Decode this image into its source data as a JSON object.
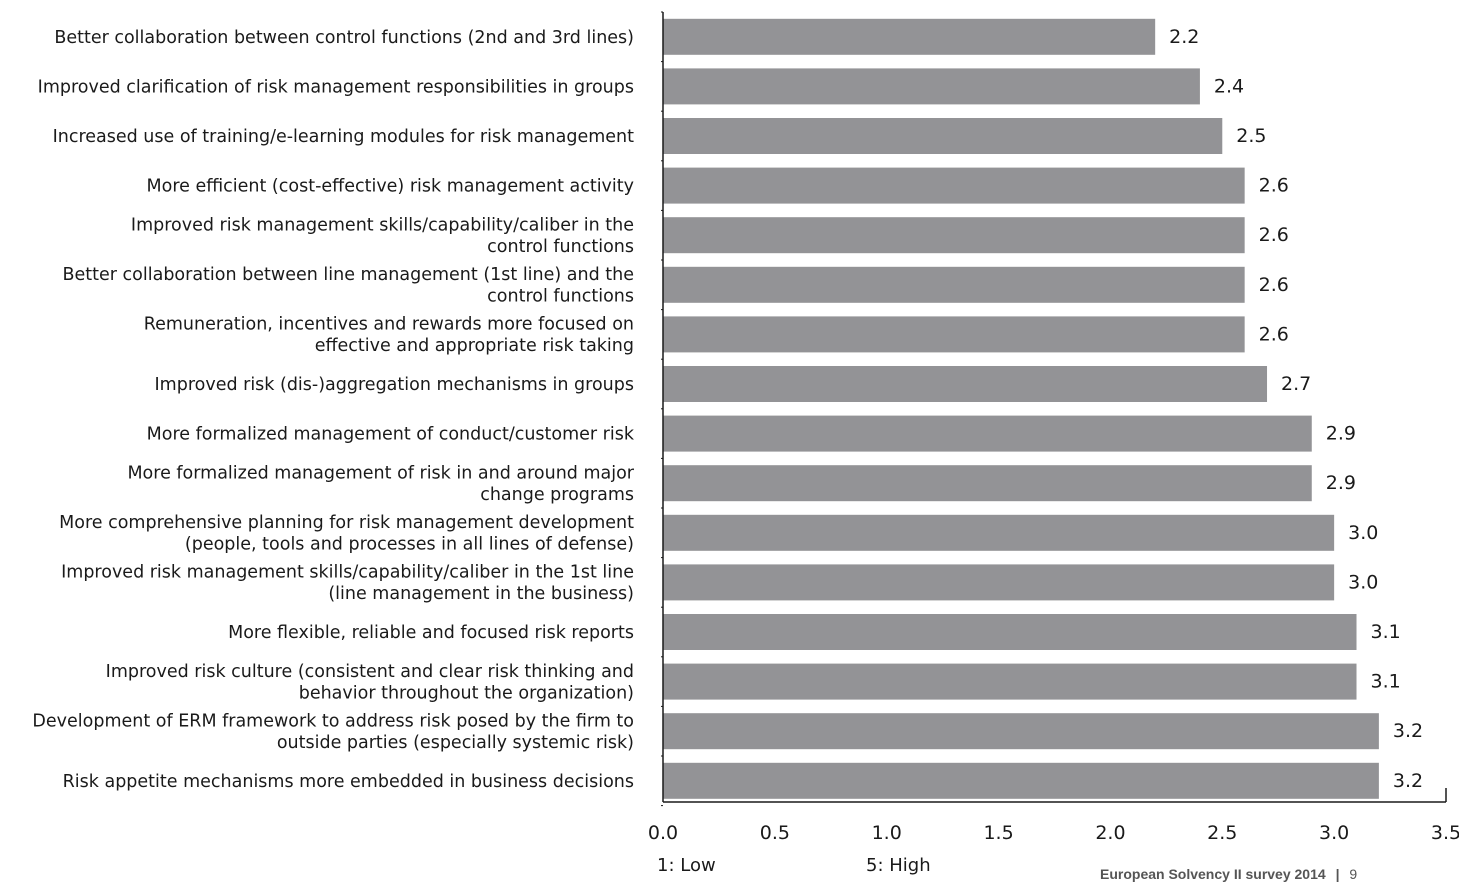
{
  "chart_data": {
    "type": "bar",
    "orientation": "horizontal",
    "categories": [
      "Better collaboration between control functions (2nd and 3rd lines)",
      "Improved clarification of risk management responsibilities in groups",
      "Increased use of training/e-learning modules for risk management",
      "More efficient (cost-effective) risk management activity",
      "Improved risk management skills/capability/caliber in the control functions",
      "Better collaboration between line management (1st line) and the control functions",
      "Remuneration, incentives and rewards more focused on effective and appropriate risk taking",
      "Improved risk (dis-)aggregation mechanisms in groups",
      "More formalized management of conduct/customer risk",
      "More formalized management of risk in and around major change programs",
      "More comprehensive planning for risk management development (people, tools and processes in all lines of defense)",
      "Improved risk management skills/capability/caliber in the 1st line (line management in the business)",
      "More flexible, reliable and focused risk reports",
      "Improved risk culture (consistent and clear risk thinking and behavior throughout the organization)",
      "Development of ERM framework to address risk posed by the firm to outside parties (especially systemic risk)",
      "Risk appetite mechanisms more embedded in business decisions"
    ],
    "category_lines": [
      [
        "Better collaboration between control functions (2nd and 3rd lines)"
      ],
      [
        "Improved clarification of risk management responsibilities in groups"
      ],
      [
        "Increased use of training/e-learning modules for risk management"
      ],
      [
        "More efficient (cost-effective) risk management activity"
      ],
      [
        "Improved risk management skills/capability/caliber in the",
        "control functions"
      ],
      [
        "Better collaboration between line management (1st line) and the",
        "control functions"
      ],
      [
        "Remuneration, incentives and rewards more focused on",
        "effective and appropriate risk taking"
      ],
      [
        "Improved risk (dis-)aggregation mechanisms in groups"
      ],
      [
        "More formalized management of conduct/customer risk"
      ],
      [
        "More formalized management of risk in and around major",
        "change programs"
      ],
      [
        "More comprehensive planning for risk management development",
        "(people, tools and processes in all lines of defense)"
      ],
      [
        "Improved risk management skills/capability/caliber in the 1st line",
        "(line management in the business)"
      ],
      [
        "More flexible, reliable and focused risk reports"
      ],
      [
        "Improved risk culture (consistent and clear risk thinking and",
        "behavior throughout the organization)"
      ],
      [
        "Development of ERM framework to address risk posed by the firm to",
        "outside parties (especially systemic risk)"
      ],
      [
        "Risk appetite mechanisms more embedded in business decisions"
      ]
    ],
    "values": [
      2.2,
      2.4,
      2.5,
      2.6,
      2.6,
      2.6,
      2.6,
      2.7,
      2.9,
      2.9,
      3.0,
      3.0,
      3.1,
      3.1,
      3.2,
      3.2
    ],
    "value_labels": [
      "2.2",
      "2.4",
      "2.5",
      "2.6",
      "2.6",
      "2.6",
      "2.6",
      "2.7",
      "2.9",
      "2.9",
      "3.0",
      "3.0",
      "3.1",
      "3.1",
      "3.2",
      "3.2"
    ],
    "xlim": [
      0,
      3.5
    ],
    "x_ticks": [
      "0.0",
      "0.5",
      "1.0",
      "1.5",
      "2.0",
      "2.5",
      "3.0",
      "3.5"
    ],
    "scale_notes": [
      "1: Low",
      "5: High"
    ],
    "bar_color": "#939396",
    "grid": false,
    "legend": "none"
  },
  "footer": {
    "source": "European Solvency II survey 2014",
    "separator": "|",
    "page_number": "9"
  }
}
